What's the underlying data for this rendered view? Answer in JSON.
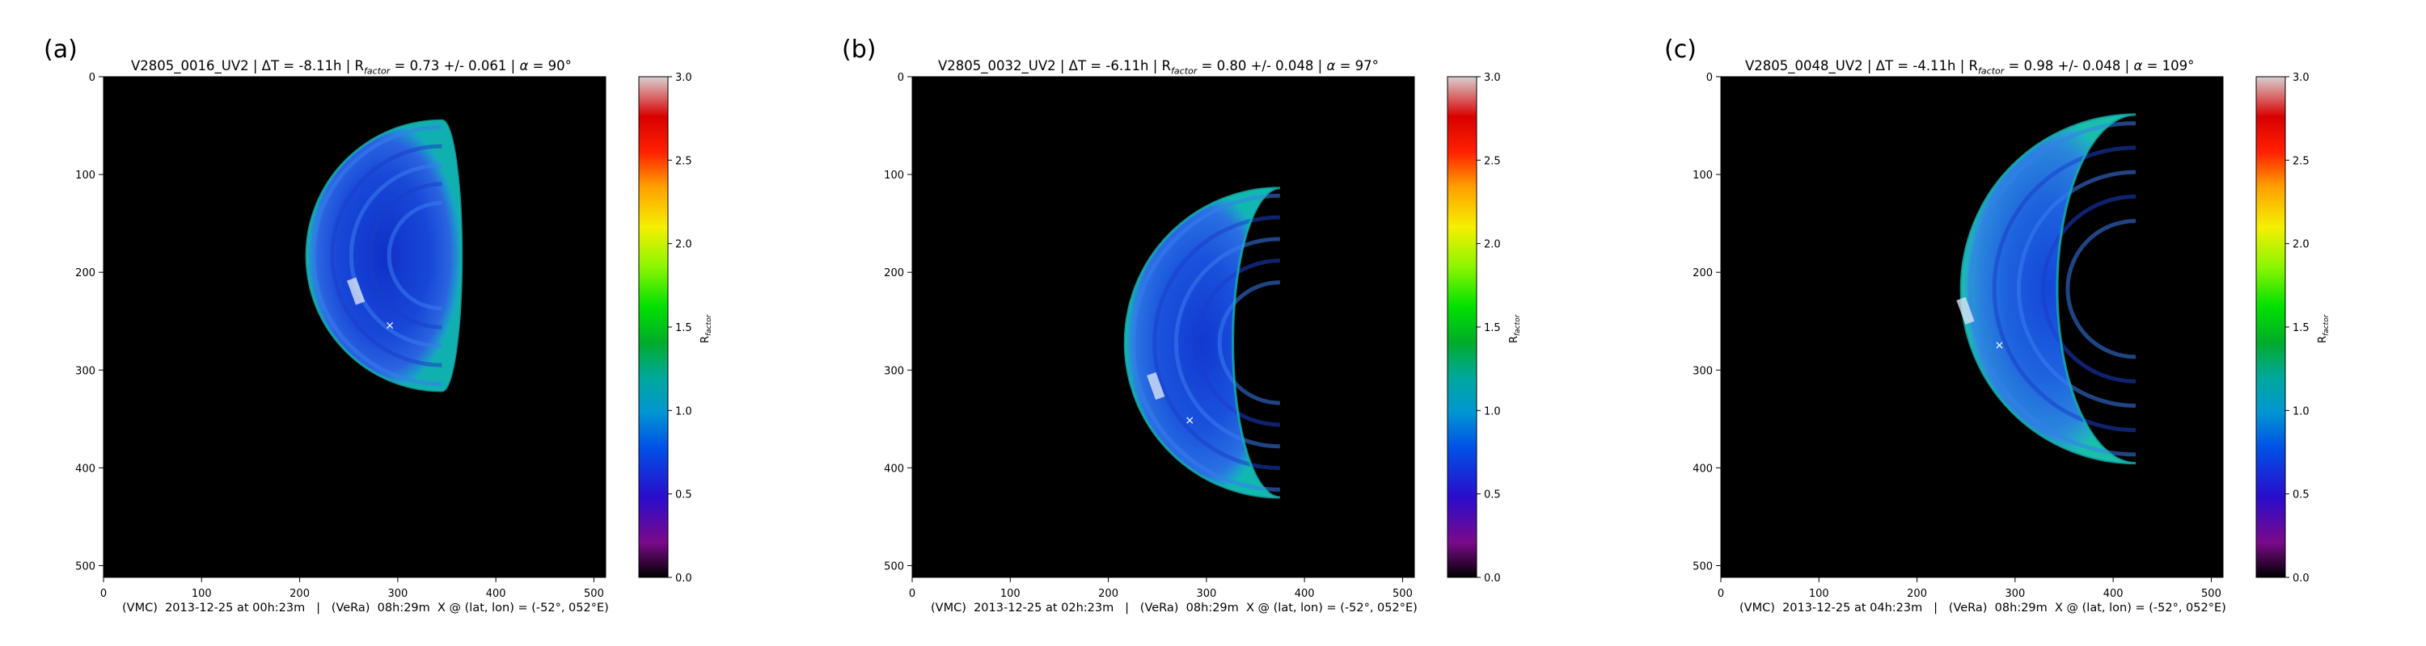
{
  "figure": {
    "panels": [
      {
        "label": "(a)",
        "title_prefix": "V2805_0016_UV2 | ΔT = -8.11h | R",
        "title_sub": "factor",
        "title_mid": " =  0.73 +/-  0.061 | ",
        "title_alpha_sym": "α",
        "title_alpha_val": " = 90°",
        "footer": "(VMC)  2013-12-25 at 00h:23m   |   (VeRa)  08h:29m  X @ (lat, lon) = (-52°, 052°E)",
        "colorbar_label": "R",
        "colorbar_sub": "factor"
      },
      {
        "label": "(b)",
        "title_prefix": "V2805_0032_UV2 | ΔT = -6.11h | R",
        "title_sub": "factor",
        "title_mid": " =  0.80 +/-  0.048 | ",
        "title_alpha_sym": "α",
        "title_alpha_val": " = 97°",
        "footer": "(VMC)  2013-12-25 at 02h:23m   |   (VeRa)  08h:29m  X @ (lat, lon) = (-52°, 052°E)",
        "colorbar_label": "R",
        "colorbar_sub": "factor"
      },
      {
        "label": "(c)",
        "title_prefix": "V2805_0048_UV2 | ΔT = -4.11h | R",
        "title_sub": "factor",
        "title_mid": " =  0.98 +/-  0.048 | ",
        "title_alpha_sym": "α",
        "title_alpha_val": " = 109°",
        "footer": "(VMC)  2013-12-25 at 04h:23m   |   (VeRa)  08h:29m  X @ (lat, lon) = (-52°, 052°E)",
        "colorbar_label": "R",
        "colorbar_sub": "factor"
      }
    ]
  },
  "chart_data": [
    {
      "type": "heatmap",
      "xlim": [
        0,
        512
      ],
      "ylim": [
        512,
        0
      ],
      "x_ticks": [
        0,
        100,
        200,
        300,
        400,
        500
      ],
      "y_ticks": [
        0,
        100,
        200,
        300,
        400,
        500
      ],
      "colorbar": {
        "range": [
          0.0,
          3.0
        ],
        "ticks": [
          "0.0",
          "0.5",
          "1.0",
          "1.5",
          "2.0",
          "2.5",
          "3.0"
        ]
      },
      "disk": {
        "cx": 345,
        "cy": 183,
        "r": 138,
        "terminator_r": 20
      },
      "marker": {
        "x": 292,
        "y": 254
      },
      "mean_value": 0.73
    },
    {
      "type": "heatmap",
      "xlim": [
        0,
        512
      ],
      "ylim": [
        512,
        0
      ],
      "x_ticks": [
        0,
        100,
        200,
        300,
        400,
        500
      ],
      "y_ticks": [
        0,
        100,
        200,
        300,
        400,
        500
      ],
      "colorbar": {
        "range": [
          0.0,
          3.0
        ],
        "ticks": [
          "0.0",
          "0.5",
          "1.0",
          "1.5",
          "2.0",
          "2.5",
          "3.0"
        ]
      },
      "disk": {
        "cx": 375,
        "cy": 272,
        "r": 158,
        "terminator_r": 48
      },
      "marker": {
        "x": 283,
        "y": 351
      },
      "mean_value": 0.8
    },
    {
      "type": "heatmap",
      "xlim": [
        0,
        512
      ],
      "ylim": [
        512,
        0
      ],
      "x_ticks": [
        0,
        100,
        200,
        300,
        400,
        500
      ],
      "y_ticks": [
        0,
        100,
        200,
        300,
        400,
        500
      ],
      "colorbar": {
        "range": [
          0.0,
          3.0
        ],
        "ticks": [
          "0.0",
          "0.5",
          "1.0",
          "1.5",
          "2.0",
          "2.5",
          "3.0"
        ]
      },
      "disk": {
        "cx": 423,
        "cy": 217,
        "r": 178,
        "terminator_r": 80
      },
      "marker": {
        "x": 284,
        "y": 274
      },
      "mean_value": 0.98
    }
  ]
}
